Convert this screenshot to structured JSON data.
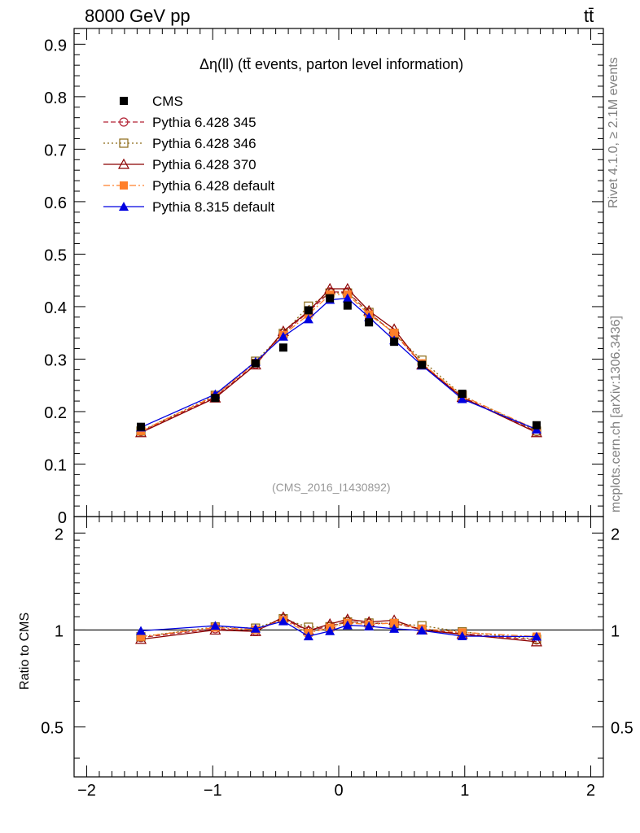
{
  "header": {
    "energy": "8000 GeV pp",
    "process": "tt̄"
  },
  "side_labels": {
    "rivet": "Rivet 4.1.0, ≥ 2.1M events",
    "mcplots": "mcplots.cern.ch [arXiv:1306.3436]"
  },
  "watermark": "(CMS_2016_I1430892)",
  "chart_data": {
    "type": "line",
    "title": "Δη(ll) (tt̄ events, parton level information)",
    "xlabel": "",
    "ylabel_ratio": "Ratio to CMS",
    "xlim": [
      -2.1,
      2.1
    ],
    "ylim": [
      0,
      0.93
    ],
    "ratio_ylim": [
      0.35,
      2.25
    ],
    "x_ticks": [
      "−2",
      "−1",
      "0",
      "1",
      "2"
    ],
    "y_ticks": [
      "0",
      "0.1",
      "0.2",
      "0.3",
      "0.4",
      "0.5",
      "0.6",
      "0.7",
      "0.8",
      "0.9"
    ],
    "ratio_ticks": [
      "0.5",
      "1",
      "2"
    ],
    "x": [
      -1.57,
      -0.98,
      -0.66,
      -0.44,
      -0.24,
      -0.07,
      0.07,
      0.24,
      0.44,
      0.66,
      0.98,
      1.57
    ],
    "series": [
      {
        "name": "CMS",
        "role": "data",
        "color": "#000000",
        "marker": "square",
        "values": [
          0.171,
          0.226,
          0.292,
          0.322,
          0.393,
          0.416,
          0.402,
          0.37,
          0.333,
          0.289,
          0.234,
          0.174
        ]
      },
      {
        "name": "Pythia 6.428 345",
        "color": "#b22234",
        "marker": "circle-open",
        "dash": "6,3",
        "values": [
          0.162,
          0.228,
          0.29,
          0.349,
          0.39,
          0.428,
          0.428,
          0.388,
          0.349,
          0.29,
          0.228,
          0.162
        ]
      },
      {
        "name": "Pythia 6.428 346",
        "color": "#8b6914",
        "marker": "square-open",
        "dash": "2,3",
        "values": [
          0.163,
          0.231,
          0.296,
          0.349,
          0.401,
          0.426,
          0.426,
          0.389,
          0.349,
          0.298,
          0.231,
          0.163
        ]
      },
      {
        "name": "Pythia 6.428 370",
        "color": "#8b0000",
        "marker": "triangle-open",
        "dash": "",
        "values": [
          0.16,
          0.226,
          0.289,
          0.353,
          0.391,
          0.434,
          0.434,
          0.392,
          0.357,
          0.289,
          0.227,
          0.16
        ]
      },
      {
        "name": "Pythia 6.428 default",
        "color": "#ff7f2a",
        "marker": "square",
        "dash": "8,3,2,3",
        "values": [
          0.163,
          0.23,
          0.293,
          0.346,
          0.385,
          0.423,
          0.423,
          0.385,
          0.35,
          0.292,
          0.23,
          0.166
        ]
      },
      {
        "name": "Pythia 8.315 default",
        "color": "#0000e0",
        "marker": "triangle",
        "dash": "",
        "values": [
          0.17,
          0.233,
          0.295,
          0.343,
          0.376,
          0.413,
          0.416,
          0.38,
          0.336,
          0.288,
          0.224,
          0.166
        ]
      }
    ]
  }
}
